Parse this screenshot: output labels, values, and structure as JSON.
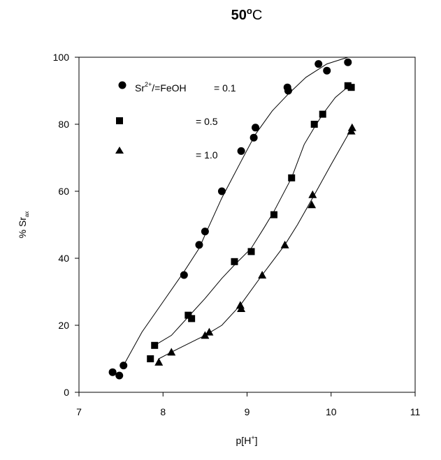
{
  "chart_data": {
    "type": "scatter",
    "title_main": "50",
    "title_deg": "o",
    "title_unit": "C",
    "xlabel_main": "p[H",
    "xlabel_sup": "+",
    "xlabel_end": "]",
    "ylabel_main": "% Sr",
    "ylabel_sub": "ax",
    "xlim": [
      7,
      11
    ],
    "ylim": [
      0,
      100
    ],
    "xticks": [
      "7",
      "8",
      "9",
      "10",
      "11"
    ],
    "yticks": [
      "0",
      "20",
      "40",
      "60",
      "80",
      "100"
    ],
    "grid": false,
    "legend_position": "top-left",
    "legend_prefix": "Sr",
    "legend_prefix_sup": "2+",
    "legend_prefix_rest": "/=FeOH",
    "series": [
      {
        "name": "= 0.1",
        "marker": "circle",
        "points": [
          [
            7.4,
            6
          ],
          [
            7.48,
            5
          ],
          [
            7.53,
            8
          ],
          [
            8.25,
            35
          ],
          [
            8.43,
            44
          ],
          [
            8.5,
            48
          ],
          [
            8.7,
            60
          ],
          [
            8.93,
            72
          ],
          [
            9.08,
            76
          ],
          [
            9.1,
            79
          ],
          [
            9.48,
            91
          ],
          [
            9.49,
            90
          ],
          [
            9.85,
            98
          ],
          [
            9.95,
            96
          ],
          [
            10.2,
            98.5
          ]
        ],
        "curve": [
          [
            7.53,
            8
          ],
          [
            7.75,
            18
          ],
          [
            8.0,
            27
          ],
          [
            8.25,
            36
          ],
          [
            8.43,
            43
          ],
          [
            8.5,
            47
          ],
          [
            8.7,
            58
          ],
          [
            8.93,
            69
          ],
          [
            9.1,
            77
          ],
          [
            9.3,
            84
          ],
          [
            9.49,
            89
          ],
          [
            9.7,
            94
          ],
          [
            9.95,
            98
          ],
          [
            10.2,
            100
          ]
        ]
      },
      {
        "name": "= 0.5",
        "marker": "square",
        "points": [
          [
            7.85,
            10
          ],
          [
            7.9,
            14
          ],
          [
            8.3,
            23
          ],
          [
            8.34,
            22
          ],
          [
            8.85,
            39
          ],
          [
            9.05,
            42
          ],
          [
            9.32,
            53
          ],
          [
            9.53,
            64
          ],
          [
            9.8,
            80
          ],
          [
            9.9,
            83
          ],
          [
            10.2,
            91.5
          ],
          [
            10.24,
            91
          ]
        ],
        "curve": [
          [
            7.9,
            14
          ],
          [
            8.1,
            17
          ],
          [
            8.3,
            22.5
          ],
          [
            8.5,
            28
          ],
          [
            8.7,
            34
          ],
          [
            8.85,
            38
          ],
          [
            9.05,
            43
          ],
          [
            9.2,
            49
          ],
          [
            9.32,
            54
          ],
          [
            9.53,
            64
          ],
          [
            9.68,
            74
          ],
          [
            9.8,
            79
          ],
          [
            9.9,
            83
          ],
          [
            10.05,
            88
          ],
          [
            10.24,
            92
          ]
        ]
      },
      {
        "name": "= 1.0",
        "marker": "triangle",
        "points": [
          [
            7.95,
            9
          ],
          [
            8.1,
            12
          ],
          [
            8.5,
            17
          ],
          [
            8.55,
            18
          ],
          [
            8.92,
            26
          ],
          [
            8.93,
            25
          ],
          [
            9.18,
            35
          ],
          [
            9.45,
            44
          ],
          [
            9.77,
            56
          ],
          [
            9.78,
            59
          ],
          [
            10.24,
            78
          ],
          [
            10.25,
            79
          ]
        ],
        "curve": [
          [
            7.95,
            10
          ],
          [
            8.1,
            12
          ],
          [
            8.3,
            14.5
          ],
          [
            8.5,
            17
          ],
          [
            8.7,
            20
          ],
          [
            8.92,
            26
          ],
          [
            9.18,
            35
          ],
          [
            9.45,
            44
          ],
          [
            9.6,
            50
          ],
          [
            9.78,
            58
          ],
          [
            10.0,
            68
          ],
          [
            10.25,
            79
          ]
        ]
      }
    ]
  }
}
